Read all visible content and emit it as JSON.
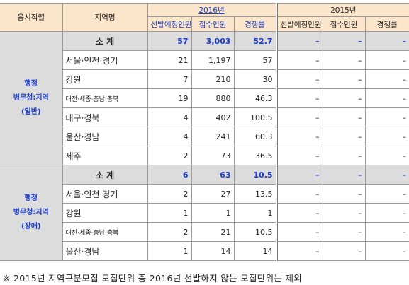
{
  "header": {
    "col1": "응시직렬",
    "col2": "지역명",
    "years": [
      {
        "label": "2016년",
        "columns": [
          "선발예정인원",
          "접수인원",
          "경쟁률"
        ]
      },
      {
        "label": "2015년",
        "columns": [
          "선발예정인원",
          "접수인원",
          "경쟁률"
        ]
      }
    ]
  },
  "groups": [
    {
      "label_lines": [
        "행정",
        "병무청:지역",
        "(일반)"
      ],
      "rows": [
        {
          "region": "소 계",
          "subtotal": true,
          "cells": [
            "57",
            "3,003",
            "52.7",
            "–",
            "–",
            "–"
          ]
        },
        {
          "region": "서울·인천·경기",
          "cells": [
            "21",
            "1,197",
            "57",
            "–",
            "–",
            "–"
          ]
        },
        {
          "region": "강원",
          "cells": [
            "7",
            "210",
            "30",
            "–",
            "–",
            "–"
          ]
        },
        {
          "region": "대전·세종·충남·충북",
          "small": true,
          "cells": [
            "19",
            "880",
            "46.3",
            "–",
            "–",
            "–"
          ]
        },
        {
          "region": "대구·경북",
          "cells": [
            "4",
            "402",
            "100.5",
            "–",
            "–",
            "–"
          ]
        },
        {
          "region": "울산·경남",
          "cells": [
            "4",
            "241",
            "60.3",
            "–",
            "–",
            "–"
          ]
        },
        {
          "region": "제주",
          "cells": [
            "2",
            "73",
            "36.5",
            "–",
            "–",
            "–"
          ]
        }
      ]
    },
    {
      "label_lines": [
        "행정",
        "병무청:지역",
        "(장애)"
      ],
      "rows": [
        {
          "region": "소 계",
          "subtotal": true,
          "cells": [
            "6",
            "63",
            "10.5",
            "–",
            "–",
            "–"
          ]
        },
        {
          "region": "서울·인천·경기",
          "cells": [
            "2",
            "27",
            "13.5",
            "–",
            "–",
            "–"
          ]
        },
        {
          "region": "강원",
          "cells": [
            "1",
            "1",
            "1",
            "–",
            "–",
            "–"
          ]
        },
        {
          "region": "대전·세종·충남·충북",
          "small": true,
          "cells": [
            "2",
            "21",
            "10.5",
            "–",
            "–",
            "–"
          ]
        },
        {
          "region": "울산·경남",
          "cells": [
            "1",
            "14",
            "14",
            "–",
            "–",
            "–"
          ]
        }
      ]
    }
  ],
  "footnote": "※ 2015년 지역구분모집 모집단위 중 2016년 선발하지 않는 모집단위는 제외"
}
